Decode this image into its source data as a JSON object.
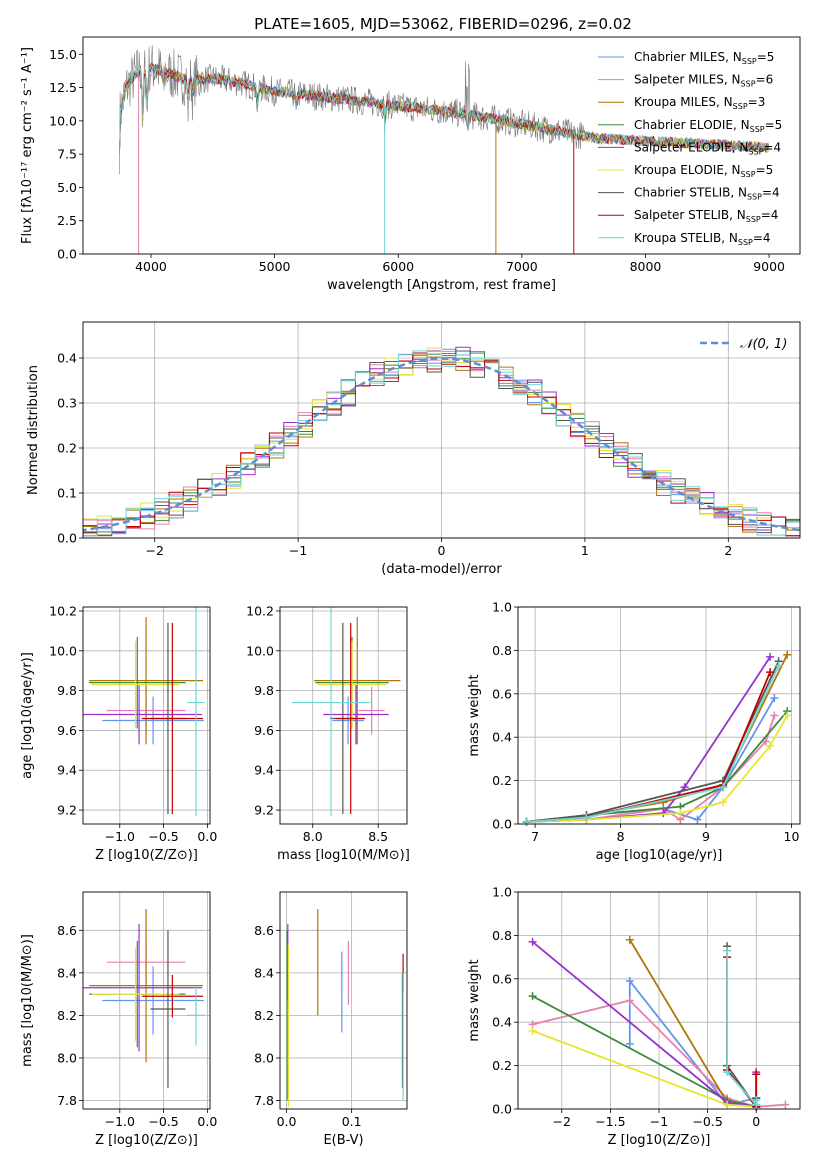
{
  "figure_title": "PLATE=1605, MJD=53062, FIBERID=0296, z=0.02",
  "colors": [
    "#6495ed",
    "#e680b0",
    "#b0750a",
    "#3c8a3c",
    "#9932cc",
    "#e6e632",
    "#555555",
    "#c00000",
    "#6fd6d6"
  ],
  "chart_data": [
    {
      "id": "spectrum",
      "type": "line",
      "title": "PLATE=1605, MJD=53062, FIBERID=0296, z=0.02",
      "xlabel": "wavelength [Angstrom, rest frame]",
      "ylabel": "Flux [fλ10⁻¹⁷ erg cm⁻² s⁻¹ A⁻¹]",
      "xlim": [
        3450,
        9250
      ],
      "ylim": [
        0,
        16.3
      ],
      "xticks": [
        4000,
        5000,
        6000,
        7000,
        8000,
        9000
      ],
      "yticks": [
        0.0,
        2.5,
        5.0,
        7.5,
        10.0,
        12.5,
        15.0
      ],
      "legend_position": "top-right",
      "series": [
        {
          "name": "Chabrier MILES, N_SSP=5",
          "color": "#6495ed"
        },
        {
          "name": "Salpeter MILES, N_SSP=6",
          "color": "#e680b0"
        },
        {
          "name": "Kroupa MILES, N_SSP=3",
          "color": "#b0750a"
        },
        {
          "name": "Chabrier ELODIE, N_SSP=5",
          "color": "#3c8a3c"
        },
        {
          "name": "Salpeter ELODIE, N_SSP=4",
          "color": "#9932cc"
        },
        {
          "name": "Kroupa ELODIE, N_SSP=5",
          "color": "#e6e632"
        },
        {
          "name": "Chabrier STELIB, N_SSP=4",
          "color": "#555555"
        },
        {
          "name": "Salpeter STELIB, N_SSP=4",
          "color": "#c00000"
        },
        {
          "name": "Kroupa STELIB, N_SSP=4",
          "color": "#6fd6d6"
        }
      ],
      "continuum": {
        "x": [
          3750,
          3800,
          3900,
          4000,
          4100,
          4200,
          4300,
          4500,
          4700,
          5000,
          5300,
          5600,
          6000,
          6400,
          6800,
          7200,
          7600,
          8000,
          8400,
          8800,
          9000
        ],
        "y": [
          10.5,
          12.5,
          13.8,
          14.0,
          13.7,
          13.4,
          13.0,
          13.2,
          12.9,
          12.2,
          11.9,
          11.6,
          11.1,
          10.7,
          10.1,
          9.4,
          8.7,
          8.5,
          8.3,
          8.1,
          8.0
        ]
      },
      "grid": false
    },
    {
      "id": "residuals",
      "type": "histogram",
      "xlabel": "(data-model)/error",
      "ylabel": "Normed distribution",
      "xlim": [
        -2.5,
        2.5
      ],
      "ylim": [
        0,
        0.48
      ],
      "xticks": [
        -2,
        -1,
        0,
        1,
        2
      ],
      "yticks": [
        0.0,
        0.1,
        0.2,
        0.3,
        0.4
      ],
      "bin_width": 0.1,
      "legend": "𝒩(0, 1)",
      "legend_position": "top-right",
      "reference_curve": "normal(0,1)",
      "grid": true
    },
    {
      "id": "age-vs-Z",
      "type": "errorbar",
      "xlabel": "Z [log10(Z/Z⊙)]",
      "ylabel": "age  [log10(age/yr)]",
      "xlim": [
        -1.42,
        0.03
      ],
      "ylim": [
        9.13,
        10.22
      ],
      "xticks": [
        -1.0,
        -0.5,
        0.0
      ],
      "yticks": [
        9.2,
        9.4,
        9.6,
        9.8,
        10.0,
        10.2
      ],
      "grid": true,
      "points": [
        {
          "color": "#6495ed",
          "x": -0.62,
          "xerr": 0.58,
          "y": 9.65,
          "yerr": 0.12
        },
        {
          "color": "#e680b0",
          "x": -0.7,
          "xerr": 0.45,
          "y": 9.7,
          "yerr": 0.12
        },
        {
          "color": "#b0750a",
          "x": -0.7,
          "xerr": 0.65,
          "y": 9.85,
          "yerr": 0.32
        },
        {
          "color": "#3c8a3c",
          "x": -0.8,
          "xerr": 0.55,
          "y": 9.84,
          "yerr": 0.23
        },
        {
          "color": "#9932cc",
          "x": -0.78,
          "xerr": 0.72,
          "y": 9.68,
          "yerr": 0.15
        },
        {
          "color": "#e6e632",
          "x": -0.82,
          "xerr": 0.5,
          "y": 9.83,
          "yerr": 0.22
        },
        {
          "color": "#555555",
          "x": -0.45,
          "xerr": 0.2,
          "y": 9.66,
          "yerr": 0.48
        },
        {
          "color": "#c00000",
          "x": -0.4,
          "xerr": 0.35,
          "y": 9.66,
          "yerr": 0.48
        },
        {
          "color": "#6fd6d6",
          "x": -0.13,
          "xerr": 0.1,
          "y": 9.74,
          "yerr": 0.57
        }
      ]
    },
    {
      "id": "age-vs-mass",
      "type": "errorbar",
      "xlabel": "mass [log10(M/M⊙)]",
      "ylabel": "",
      "xlim": [
        7.75,
        8.72
      ],
      "ylim": [
        9.13,
        10.22
      ],
      "xticks": [
        8.0,
        8.5
      ],
      "yticks": [
        9.2,
        9.4,
        9.6,
        9.8,
        10.0,
        10.2
      ],
      "grid": true,
      "points": [
        {
          "color": "#6495ed",
          "x": 8.27,
          "xerr": 0.12,
          "y": 9.65,
          "yerr": 0.12
        },
        {
          "color": "#e680b0",
          "x": 8.45,
          "xerr": 0.1,
          "y": 9.7,
          "yerr": 0.12
        },
        {
          "color": "#b0750a",
          "x": 8.34,
          "xerr": 0.33,
          "y": 9.85,
          "yerr": 0.32
        },
        {
          "color": "#3c8a3c",
          "x": 8.3,
          "xerr": 0.28,
          "y": 9.84,
          "yerr": 0.23
        },
        {
          "color": "#9932cc",
          "x": 8.33,
          "xerr": 0.25,
          "y": 9.68,
          "yerr": 0.15
        },
        {
          "color": "#e6e632",
          "x": 8.3,
          "xerr": 0.26,
          "y": 9.83,
          "yerr": 0.22
        },
        {
          "color": "#555555",
          "x": 8.23,
          "xerr": 0.1,
          "y": 9.66,
          "yerr": 0.48
        },
        {
          "color": "#c00000",
          "x": 8.29,
          "xerr": 0.11,
          "y": 9.66,
          "yerr": 0.48
        },
        {
          "color": "#6fd6d6",
          "x": 8.14,
          "xerr": 0.3,
          "y": 9.74,
          "yerr": 0.57
        }
      ]
    },
    {
      "id": "mass-weight-vs-age",
      "type": "line",
      "xlabel": "age  [log10(age/yr)]",
      "ylabel": "mass weight",
      "xlim": [
        6.8,
        10.1
      ],
      "ylim": [
        0,
        1
      ],
      "xticks": [
        7,
        8,
        9,
        10
      ],
      "yticks": [
        0.0,
        0.2,
        0.4,
        0.6,
        0.8,
        1.0
      ],
      "grid": true,
      "series": [
        {
          "color": "#6495ed",
          "x": [
            6.9,
            7.6,
            8.5,
            8.9,
            9.2,
            9.8
          ],
          "y": [
            0.01,
            0.04,
            0.07,
            0.02,
            0.17,
            0.58
          ]
        },
        {
          "color": "#e680b0",
          "x": [
            6.9,
            7.6,
            8.5,
            8.7,
            9.2,
            9.7,
            9.8
          ],
          "y": [
            0.01,
            0.02,
            0.07,
            0.02,
            0.17,
            0.38,
            0.5
          ]
        },
        {
          "color": "#b0750a",
          "x": [
            6.9,
            7.6,
            8.5,
            9.2,
            9.95
          ],
          "y": [
            0.01,
            0.04,
            0.1,
            0.18,
            0.78
          ]
        },
        {
          "color": "#3c8a3c",
          "x": [
            6.9,
            7.6,
            8.7,
            9.2,
            9.95
          ],
          "y": [
            0.01,
            0.04,
            0.08,
            0.17,
            0.52
          ]
        },
        {
          "color": "#9932cc",
          "x": [
            6.9,
            7.6,
            8.5,
            8.75,
            9.75
          ],
          "y": [
            0.01,
            0.02,
            0.05,
            0.17,
            0.77
          ]
        },
        {
          "color": "#e6e632",
          "x": [
            6.9,
            7.6,
            8.7,
            9.2,
            9.75,
            9.95
          ],
          "y": [
            0.01,
            0.02,
            0.05,
            0.1,
            0.36,
            0.5
          ]
        },
        {
          "color": "#555555",
          "x": [
            6.9,
            7.6,
            9.2,
            9.85
          ],
          "y": [
            0.01,
            0.04,
            0.2,
            0.75
          ]
        },
        {
          "color": "#c00000",
          "x": [
            6.9,
            7.6,
            9.2,
            9.75
          ],
          "y": [
            0.01,
            0.03,
            0.18,
            0.7
          ]
        },
        {
          "color": "#6fd6d6",
          "x": [
            6.9,
            7.6,
            9.2,
            9.85
          ],
          "y": [
            0.01,
            0.03,
            0.17,
            0.73
          ]
        }
      ]
    },
    {
      "id": "mass-vs-Z",
      "type": "errorbar",
      "xlabel": "Z [log10(Z/Z⊙)]",
      "ylabel": "mass [log10(M/M⊙)]",
      "xlim": [
        -1.42,
        0.03
      ],
      "ylim": [
        7.76,
        8.78
      ],
      "xticks": [
        -1.0,
        -0.5,
        0.0
      ],
      "yticks": [
        7.8,
        8.0,
        8.2,
        8.4,
        8.6
      ],
      "grid": true,
      "points": [
        {
          "color": "#6495ed",
          "x": -0.62,
          "xerr": 0.58,
          "y": 8.27,
          "yerr": 0.16
        },
        {
          "color": "#e680b0",
          "x": -0.7,
          "xerr": 0.45,
          "y": 8.45,
          "yerr": 0.1
        },
        {
          "color": "#b0750a",
          "x": -0.7,
          "xerr": 0.65,
          "y": 8.34,
          "yerr": 0.36
        },
        {
          "color": "#3c8a3c",
          "x": -0.8,
          "xerr": 0.55,
          "y": 8.3,
          "yerr": 0.25
        },
        {
          "color": "#9932cc",
          "x": -0.78,
          "xerr": 0.72,
          "y": 8.33,
          "yerr": 0.3
        },
        {
          "color": "#e6e632",
          "x": -0.82,
          "xerr": 0.5,
          "y": 8.3,
          "yerr": 0.22
        },
        {
          "color": "#555555",
          "x": -0.45,
          "xerr": 0.2,
          "y": 8.23,
          "yerr": 0.37
        },
        {
          "color": "#c00000",
          "x": -0.4,
          "xerr": 0.35,
          "y": 8.29,
          "yerr": 0.1
        },
        {
          "color": "#6fd6d6",
          "x": -0.13,
          "xerr": 0.1,
          "y": 8.2,
          "yerr": 0.14
        }
      ]
    },
    {
      "id": "mass-vs-ebv",
      "type": "errorbar",
      "xlabel": "E(B-V)",
      "ylabel": "",
      "xlim": [
        -0.01,
        0.185
      ],
      "ylim": [
        7.76,
        8.78
      ],
      "xticks": [
        0.0,
        0.1
      ],
      "yticks": [
        7.8,
        8.0,
        8.2,
        8.4,
        8.6
      ],
      "grid": true,
      "points": [
        {
          "color": "#6495ed",
          "x": 0.085,
          "y": 8.31,
          "yerr": 0.19
        },
        {
          "color": "#e680b0",
          "x": 0.095,
          "y": 8.4,
          "yerr": 0.15
        },
        {
          "color": "#b0750a",
          "x": 0.048,
          "y": 8.45,
          "yerr": 0.25
        },
        {
          "color": "#3c8a3c",
          "x": 0.001,
          "y": 8.2,
          "yerr": 0.4
        },
        {
          "color": "#9932cc",
          "x": 0.002,
          "y": 8.45,
          "yerr": 0.18
        },
        {
          "color": "#e6e632",
          "x": 0.003,
          "y": 8.15,
          "yerr": 0.38
        },
        {
          "color": "#555555",
          "x": 0.178,
          "y": 8.13,
          "yerr": 0.27
        },
        {
          "color": "#c00000",
          "x": 0.179,
          "y": 8.4,
          "yerr": 0.09
        },
        {
          "color": "#6fd6d6",
          "x": 0.179,
          "y": 8.1,
          "yerr": 0.3
        }
      ]
    },
    {
      "id": "mass-weight-vs-Z",
      "type": "line",
      "xlabel": "Z [log10(Z/Z⊙)]",
      "ylabel": "mass weight",
      "xlim": [
        -2.45,
        0.45
      ],
      "ylim": [
        0,
        1
      ],
      "xticks": [
        -2.0,
        -1.5,
        -1.0,
        -0.5,
        0.0
      ],
      "yticks": [
        0.0,
        0.2,
        0.4,
        0.6,
        0.8,
        1.0
      ],
      "grid": true,
      "series": [
        {
          "color": "#6495ed",
          "x": [
            -1.3,
            -1.3,
            -0.3,
            0.0
          ],
          "y": [
            0.3,
            0.59,
            0.02,
            0.05
          ]
        },
        {
          "color": "#e680b0",
          "x": [
            -2.3,
            -1.3,
            -0.3,
            0.0,
            0.3
          ],
          "y": [
            0.39,
            0.5,
            0.05,
            0.01,
            0.02
          ]
        },
        {
          "color": "#b0750a",
          "x": [
            -1.3,
            -0.3,
            0.0
          ],
          "y": [
            0.78,
            0.03,
            0.01
          ]
        },
        {
          "color": "#3c8a3c",
          "x": [
            -2.3,
            -0.3,
            0.0
          ],
          "y": [
            0.52,
            0.04,
            0.01
          ]
        },
        {
          "color": "#9932cc",
          "x": [
            -2.3,
            -0.3,
            0.0,
            0.0
          ],
          "y": [
            0.77,
            0.03,
            0.01,
            0.17
          ]
        },
        {
          "color": "#e6e632",
          "x": [
            -2.3,
            -0.3,
            0.0
          ],
          "y": [
            0.36,
            0.02,
            0.01
          ]
        },
        {
          "color": "#555555",
          "x": [
            -0.3,
            -0.3,
            0.0,
            0.0
          ],
          "y": [
            0.75,
            0.2,
            0.01,
            0.05
          ]
        },
        {
          "color": "#c00000",
          "x": [
            -0.3,
            -0.3,
            0.0,
            0.0
          ],
          "y": [
            0.7,
            0.18,
            0.01,
            0.16
          ]
        },
        {
          "color": "#6fd6d6",
          "x": [
            -0.3,
            -0.3,
            0.0,
            0.0
          ],
          "y": [
            0.73,
            0.17,
            0.02,
            0.04
          ]
        }
      ]
    }
  ]
}
